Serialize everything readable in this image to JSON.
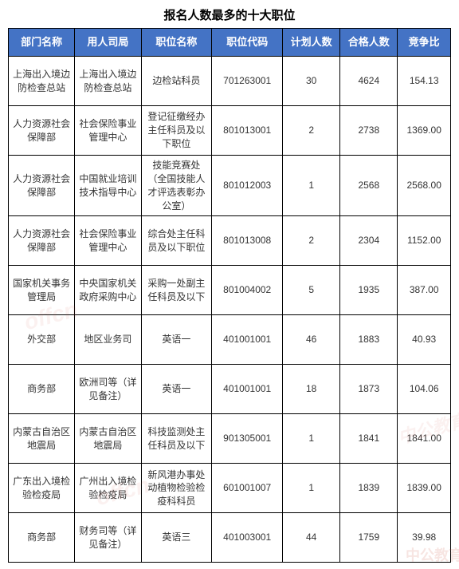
{
  "title": "报名人数最多的十大职位",
  "header_bg": "#4473c5",
  "header_fg": "#ffffff",
  "col_widths": [
    "15%",
    "15%",
    "16%",
    "16%",
    "13%",
    "13%",
    "12%"
  ],
  "columns": [
    "部门名称",
    "用人司局",
    "职位名称",
    "职位代码",
    "计划人数",
    "合格人数",
    "竞争比"
  ],
  "rows": [
    [
      "上海出入境边防检查总站",
      "上海出入境边防检查总站",
      "边检站科员",
      "701263001",
      "30",
      "4624",
      "154.13"
    ],
    [
      "人力资源社会保障部",
      "社会保险事业管理中心",
      "登记征缴经办主任科员及以下职位",
      "801013001",
      "2",
      "2738",
      "1369.00"
    ],
    [
      "人力资源社会保障部",
      "中国就业培训技术指导中心",
      "技能竞赛处（全国技能人才评选表彰办公室）",
      "801012003",
      "1",
      "2568",
      "2568.00"
    ],
    [
      "人力资源社会保障部",
      "社会保险事业管理中心",
      "综合处主任科员及以下职位",
      "801013008",
      "2",
      "2304",
      "1152.00"
    ],
    [
      "国家机关事务管理局",
      "中央国家机关政府采购中心",
      "采购一处副主任科员及以下",
      "801004002",
      "5",
      "1935",
      "387.00"
    ],
    [
      "外交部",
      "地区业务司",
      "英语一",
      "401001001",
      "46",
      "1883",
      "40.93"
    ],
    [
      "商务部",
      "欧洲司等（详见备注）",
      "英语一",
      "401001001",
      "18",
      "1873",
      "104.06"
    ],
    [
      "内蒙古自治区地震局",
      "内蒙古自治区地震局",
      "科技监测处主任科员及以下",
      "901305001",
      "1",
      "1841",
      "1841.00"
    ],
    [
      "广东出入境检验检疫局",
      "广州出入境检验检疫局",
      "新风港办事处动植物检验检疫科科员",
      "601001007",
      "1",
      "1839",
      "1839.00"
    ],
    [
      "商务部",
      "财务司等（详见备注）",
      "英语三",
      "401003001",
      "44",
      "1759",
      "39.98"
    ]
  ],
  "watermarks": [
    "offcn",
    "offcn",
    "中公教育",
    "中公教育"
  ]
}
